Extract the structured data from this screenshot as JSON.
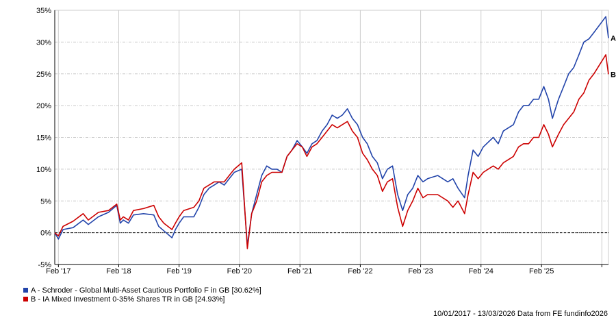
{
  "chart_data": {
    "type": "line",
    "title": "",
    "xlabel": "",
    "ylabel": "",
    "ylim": [
      -5,
      35
    ],
    "yticks": [
      "-5%",
      "0%",
      "5%",
      "10%",
      "15%",
      "20%",
      "25%",
      "30%",
      "35%"
    ],
    "ytick_values": [
      -5,
      0,
      5,
      10,
      15,
      20,
      25,
      30,
      35
    ],
    "xlim": [
      "2017-01-10",
      "2026-03-13"
    ],
    "xticks": [
      {
        "label": "Feb '17",
        "date": "2017-02-01"
      },
      {
        "label": "Feb '18",
        "date": "2018-02-01"
      },
      {
        "label": "Feb '19",
        "date": "2019-02-01"
      },
      {
        "label": "Feb '20",
        "date": "2020-02-01"
      },
      {
        "label": "Feb '21",
        "date": "2021-02-01"
      },
      {
        "label": "Feb '22",
        "date": "2022-02-01"
      },
      {
        "label": "Feb '23",
        "date": "2023-02-01"
      },
      {
        "label": "Feb '24",
        "date": "2024-02-01"
      },
      {
        "label": "Feb '25",
        "date": "2025-02-01"
      },
      {
        "label": "",
        "date": "2026-02-01"
      }
    ],
    "grid": true,
    "zero_line": true,
    "series": [
      {
        "name": "A - Schroder - Global Multi-Asset Cautious Portfolio F in GB [30.62%]",
        "end_label": "A",
        "color": "#2244aa",
        "points": [
          [
            "2017-01-10",
            0
          ],
          [
            "2017-02-01",
            -1
          ],
          [
            "2017-03-01",
            0.5
          ],
          [
            "2017-05-01",
            0.8
          ],
          [
            "2017-07-01",
            2
          ],
          [
            "2017-08-01",
            1.3
          ],
          [
            "2017-10-01",
            2.5
          ],
          [
            "2017-12-01",
            3.2
          ],
          [
            "2018-01-20",
            4.3
          ],
          [
            "2018-02-10",
            1.5
          ],
          [
            "2018-03-01",
            2
          ],
          [
            "2018-04-01",
            1.5
          ],
          [
            "2018-05-01",
            2.8
          ],
          [
            "2018-07-01",
            3
          ],
          [
            "2018-09-01",
            2.8
          ],
          [
            "2018-10-01",
            1
          ],
          [
            "2018-11-01",
            0.3
          ],
          [
            "2018-12-20",
            -0.8
          ],
          [
            "2019-01-10",
            0.5
          ],
          [
            "2019-02-01",
            1.5
          ],
          [
            "2019-03-01",
            2.5
          ],
          [
            "2019-05-01",
            2.5
          ],
          [
            "2019-06-01",
            4
          ],
          [
            "2019-07-01",
            6
          ],
          [
            "2019-08-01",
            7
          ],
          [
            "2019-09-01",
            7.5
          ],
          [
            "2019-10-01",
            8
          ],
          [
            "2019-11-01",
            7.5
          ],
          [
            "2019-12-01",
            8.5
          ],
          [
            "2020-01-01",
            9.5
          ],
          [
            "2020-02-15",
            10
          ],
          [
            "2020-03-20",
            -2
          ],
          [
            "2020-04-15",
            3
          ],
          [
            "2020-05-15",
            6
          ],
          [
            "2020-06-15",
            9
          ],
          [
            "2020-07-15",
            10.5
          ],
          [
            "2020-08-15",
            10
          ],
          [
            "2020-09-15",
            10
          ],
          [
            "2020-10-15",
            9.5
          ],
          [
            "2020-11-15",
            12
          ],
          [
            "2020-12-15",
            13
          ],
          [
            "2021-01-15",
            14.5
          ],
          [
            "2021-02-15",
            13.5
          ],
          [
            "2021-03-15",
            12.5
          ],
          [
            "2021-04-15",
            14
          ],
          [
            "2021-05-15",
            14.5
          ],
          [
            "2021-06-15",
            16
          ],
          [
            "2021-07-15",
            17
          ],
          [
            "2021-08-15",
            18.5
          ],
          [
            "2021-09-15",
            18
          ],
          [
            "2021-10-15",
            18.5
          ],
          [
            "2021-11-15",
            19.5
          ],
          [
            "2021-12-15",
            18
          ],
          [
            "2022-01-15",
            17
          ],
          [
            "2022-02-15",
            15
          ],
          [
            "2022-03-15",
            14
          ],
          [
            "2022-04-15",
            12
          ],
          [
            "2022-05-15",
            11
          ],
          [
            "2022-06-15",
            8.5
          ],
          [
            "2022-07-15",
            10
          ],
          [
            "2022-08-15",
            10.5
          ],
          [
            "2022-09-15",
            6
          ],
          [
            "2022-10-15",
            3.5
          ],
          [
            "2022-11-15",
            6
          ],
          [
            "2022-12-15",
            7
          ],
          [
            "2023-01-15",
            9
          ],
          [
            "2023-02-15",
            8
          ],
          [
            "2023-03-15",
            8.5
          ],
          [
            "2023-05-15",
            9
          ],
          [
            "2023-07-15",
            8
          ],
          [
            "2023-08-15",
            8.5
          ],
          [
            "2023-09-15",
            7
          ],
          [
            "2023-10-25",
            5.5
          ],
          [
            "2023-11-15",
            9
          ],
          [
            "2023-12-15",
            13
          ],
          [
            "2024-01-15",
            12
          ],
          [
            "2024-02-15",
            13.5
          ],
          [
            "2024-04-15",
            15
          ],
          [
            "2024-05-15",
            14
          ],
          [
            "2024-06-15",
            16
          ],
          [
            "2024-08-15",
            17
          ],
          [
            "2024-09-15",
            19
          ],
          [
            "2024-10-15",
            20
          ],
          [
            "2024-11-15",
            20
          ],
          [
            "2024-12-15",
            21
          ],
          [
            "2025-01-15",
            21
          ],
          [
            "2025-02-15",
            23
          ],
          [
            "2025-03-15",
            21
          ],
          [
            "2025-04-08",
            18
          ],
          [
            "2025-05-15",
            21
          ],
          [
            "2025-06-15",
            23
          ],
          [
            "2025-07-15",
            25
          ],
          [
            "2025-08-15",
            26
          ],
          [
            "2025-09-15",
            28
          ],
          [
            "2025-10-15",
            30
          ],
          [
            "2025-11-15",
            30.5
          ],
          [
            "2025-12-15",
            31.5
          ],
          [
            "2026-02-25",
            34
          ],
          [
            "2026-03-13",
            30.62
          ]
        ]
      },
      {
        "name": "B - IA Mixed Investment 0-35% Shares TR in GB [24.93%]",
        "end_label": "B",
        "color": "#cc0000",
        "points": [
          [
            "2017-01-10",
            0
          ],
          [
            "2017-02-01",
            -0.5
          ],
          [
            "2017-03-01",
            1
          ],
          [
            "2017-05-01",
            1.8
          ],
          [
            "2017-07-01",
            3
          ],
          [
            "2017-08-01",
            2
          ],
          [
            "2017-10-01",
            3.2
          ],
          [
            "2017-12-01",
            3.5
          ],
          [
            "2018-01-20",
            4.5
          ],
          [
            "2018-02-10",
            2
          ],
          [
            "2018-03-01",
            2.5
          ],
          [
            "2018-04-01",
            2
          ],
          [
            "2018-05-01",
            3.5
          ],
          [
            "2018-07-01",
            3.8
          ],
          [
            "2018-09-01",
            4.3
          ],
          [
            "2018-10-01",
            2.5
          ],
          [
            "2018-11-01",
            1.5
          ],
          [
            "2018-12-20",
            0.5
          ],
          [
            "2019-01-10",
            1.5
          ],
          [
            "2019-02-01",
            2.5
          ],
          [
            "2019-03-01",
            3.5
          ],
          [
            "2019-05-01",
            4
          ],
          [
            "2019-06-01",
            5
          ],
          [
            "2019-07-01",
            7
          ],
          [
            "2019-08-01",
            7.5
          ],
          [
            "2019-09-01",
            8
          ],
          [
            "2019-10-01",
            8
          ],
          [
            "2019-11-01",
            8
          ],
          [
            "2019-12-01",
            9
          ],
          [
            "2020-01-01",
            10
          ],
          [
            "2020-02-15",
            11
          ],
          [
            "2020-03-20",
            -2.5
          ],
          [
            "2020-04-15",
            3
          ],
          [
            "2020-05-15",
            5
          ],
          [
            "2020-06-15",
            8
          ],
          [
            "2020-07-15",
            9
          ],
          [
            "2020-08-15",
            9.5
          ],
          [
            "2020-09-15",
            9.5
          ],
          [
            "2020-10-15",
            9.5
          ],
          [
            "2020-11-15",
            12
          ],
          [
            "2020-12-15",
            13
          ],
          [
            "2021-01-15",
            14
          ],
          [
            "2021-02-15",
            13.5
          ],
          [
            "2021-03-15",
            12
          ],
          [
            "2021-04-15",
            13.5
          ],
          [
            "2021-05-15",
            14
          ],
          [
            "2021-06-15",
            15
          ],
          [
            "2021-07-15",
            16
          ],
          [
            "2021-08-15",
            17
          ],
          [
            "2021-09-15",
            16.5
          ],
          [
            "2021-10-15",
            17
          ],
          [
            "2021-11-15",
            17.5
          ],
          [
            "2021-12-15",
            16
          ],
          [
            "2022-01-15",
            15
          ],
          [
            "2022-02-15",
            12.5
          ],
          [
            "2022-03-15",
            11.5
          ],
          [
            "2022-04-15",
            10
          ],
          [
            "2022-05-15",
            9
          ],
          [
            "2022-06-15",
            6.5
          ],
          [
            "2022-07-15",
            8
          ],
          [
            "2022-08-15",
            8.5
          ],
          [
            "2022-09-15",
            4
          ],
          [
            "2022-10-15",
            1
          ],
          [
            "2022-11-15",
            3.5
          ],
          [
            "2022-12-15",
            5
          ],
          [
            "2023-01-15",
            7
          ],
          [
            "2023-02-15",
            5.5
          ],
          [
            "2023-03-15",
            6
          ],
          [
            "2023-05-15",
            6
          ],
          [
            "2023-07-15",
            5
          ],
          [
            "2023-08-15",
            4
          ],
          [
            "2023-09-15",
            5
          ],
          [
            "2023-10-25",
            3
          ],
          [
            "2023-11-15",
            6
          ],
          [
            "2023-12-15",
            9.5
          ],
          [
            "2024-01-15",
            8.5
          ],
          [
            "2024-02-15",
            9.5
          ],
          [
            "2024-04-15",
            10.5
          ],
          [
            "2024-05-15",
            10
          ],
          [
            "2024-06-15",
            11
          ],
          [
            "2024-08-15",
            12
          ],
          [
            "2024-09-15",
            13.5
          ],
          [
            "2024-10-15",
            14
          ],
          [
            "2024-11-15",
            14
          ],
          [
            "2024-12-15",
            15
          ],
          [
            "2025-01-15",
            15
          ],
          [
            "2025-02-15",
            17
          ],
          [
            "2025-03-15",
            15.5
          ],
          [
            "2025-04-08",
            13.5
          ],
          [
            "2025-05-15",
            15.5
          ],
          [
            "2025-06-15",
            17
          ],
          [
            "2025-07-15",
            18
          ],
          [
            "2025-08-15",
            19
          ],
          [
            "2025-09-15",
            21
          ],
          [
            "2025-10-15",
            22
          ],
          [
            "2025-11-15",
            24
          ],
          [
            "2025-12-15",
            25
          ],
          [
            "2026-02-25",
            28
          ],
          [
            "2026-03-13",
            24.93
          ]
        ]
      }
    ]
  },
  "footer": "10/01/2017 - 13/03/2026 Data from FE fundinfo2026"
}
